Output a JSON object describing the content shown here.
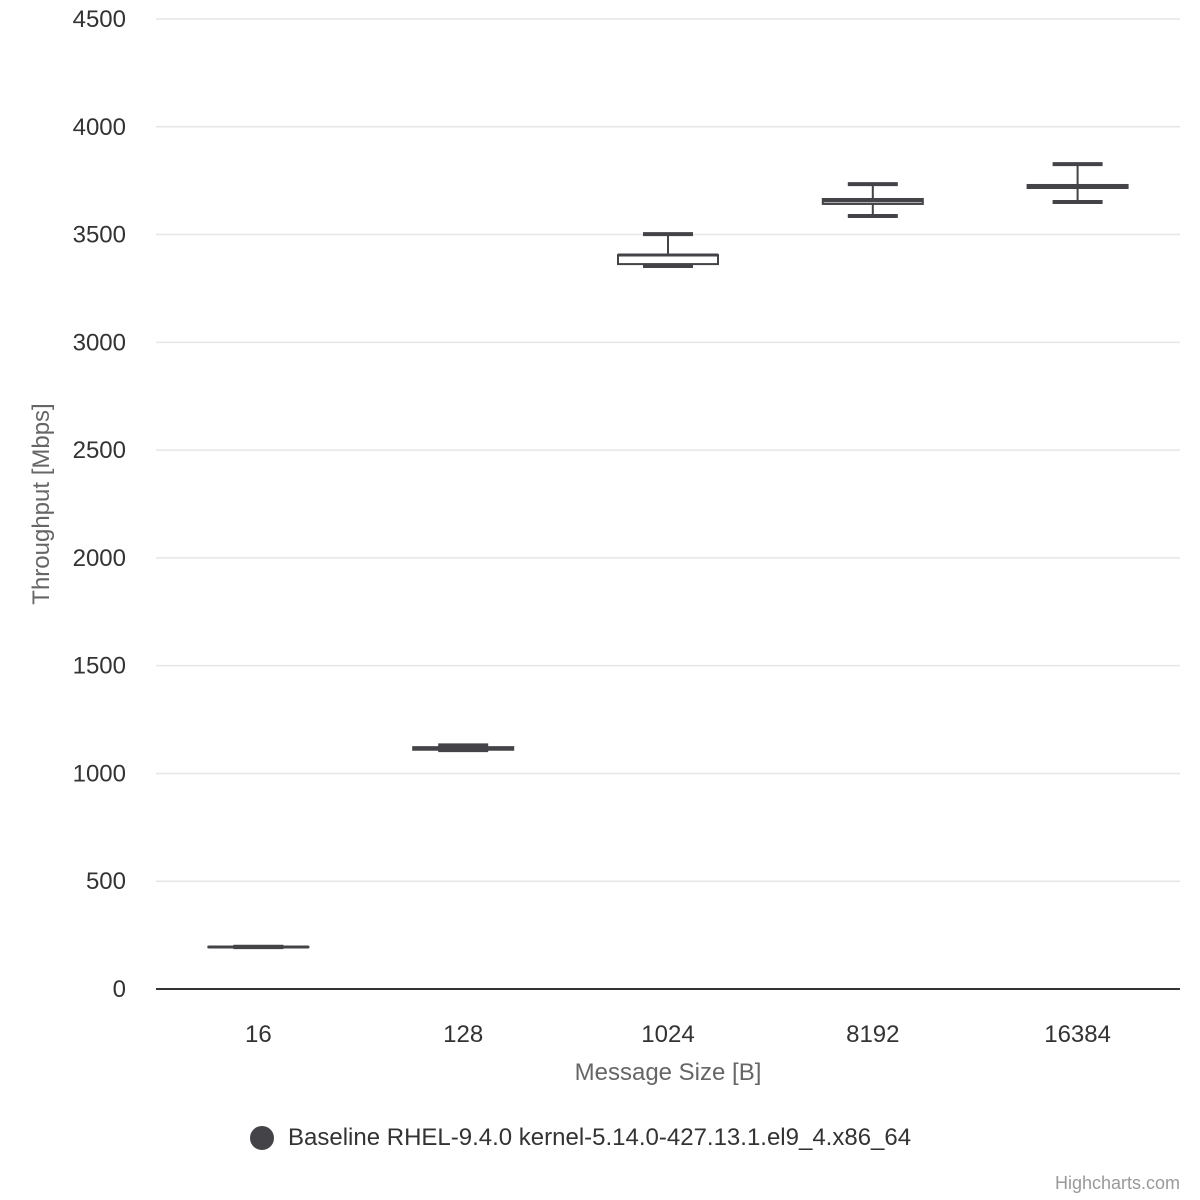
{
  "chart_data": {
    "type": "boxplot",
    "title": "",
    "xlabel": "Message Size [B]",
    "ylabel": "Throughput [Mbps]",
    "ylim": [
      0,
      4500
    ],
    "yticks": [
      0,
      500,
      1000,
      1500,
      2000,
      2500,
      3000,
      3500,
      4000,
      4500
    ],
    "categories": [
      "16",
      "128",
      "1024",
      "8192",
      "16384"
    ],
    "grid": true,
    "legend_position": "bottom-center",
    "series": [
      {
        "name": "Baseline RHEL-9.4.0 kernel-5.14.0-427.13.1.el9_4.x86_64",
        "color": "#434348",
        "values": [
          {
            "low": 194,
            "q1": 195,
            "median": 195,
            "q3": 196,
            "high": 196
          },
          {
            "low": 1108,
            "q1": 1110,
            "median": 1118,
            "q3": 1122,
            "high": 1130
          },
          {
            "low": 3354,
            "q1": 3363,
            "median": 3405,
            "q3": 3405,
            "high": 3502
          },
          {
            "low": 3586,
            "q1": 3642,
            "median": 3656,
            "q3": 3665,
            "high": 3734
          },
          {
            "low": 3651,
            "q1": 3716,
            "median": 3725,
            "q3": 3730,
            "high": 3827
          }
        ]
      }
    ]
  },
  "credits": "Highcharts.com"
}
